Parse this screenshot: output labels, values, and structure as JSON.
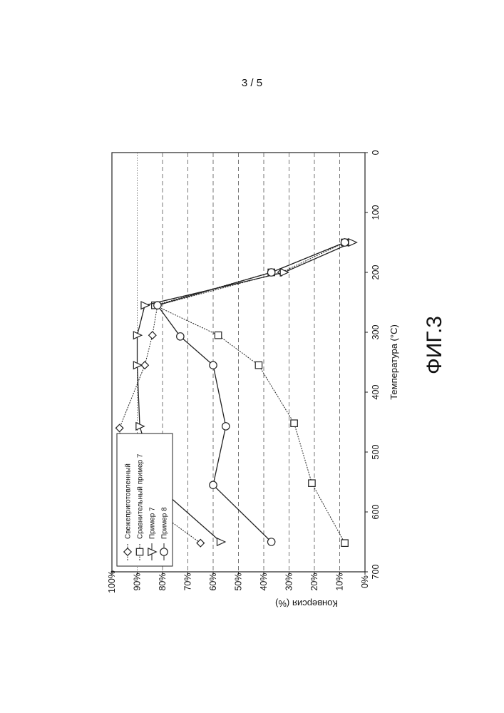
{
  "page_number": "3 / 5",
  "figure_label": "ФИГ.3",
  "chart_data": {
    "type": "line",
    "xlabel": "Температура (°C)",
    "ylabel": "Конверсия (%)",
    "xlim": [
      0,
      700
    ],
    "ylim": [
      0,
      100
    ],
    "x_ticks": [
      "0",
      "100",
      "200",
      "300",
      "400",
      "500",
      "600",
      "700"
    ],
    "y_ticks": [
      "0%",
      "10%",
      "20%",
      "30%",
      "40%",
      "50%",
      "60%",
      "70%",
      "80%",
      "90%",
      "100%"
    ],
    "grid": "horizontal dashed",
    "legend_position": "top-left",
    "series": [
      {
        "name": "Свежеприготовленный",
        "marker": "diamond",
        "line": "dotted",
        "x": [
          150,
          200,
          255,
          305,
          355,
          460,
          560,
          652
        ],
        "y": [
          8,
          33,
          82,
          84,
          87,
          97,
          95,
          65
        ]
      },
      {
        "name": "Сравнительный пример 7",
        "marker": "square",
        "line": "dotted",
        "x": [
          150,
          200,
          255,
          305,
          355,
          452,
          552,
          652
        ],
        "y": [
          8,
          37,
          83,
          58,
          42,
          28,
          21,
          8
        ]
      },
      {
        "name": "Пример 7",
        "marker": "triangle",
        "line": "solid",
        "x": [
          150,
          200,
          255,
          305,
          355,
          457,
          557,
          650
        ],
        "y": [
          5,
          32,
          87,
          90,
          90,
          89,
          82,
          57
        ]
      },
      {
        "name": "Пример 8",
        "marker": "circle",
        "line": "solid",
        "x": [
          150,
          200,
          255,
          307,
          355,
          457,
          555,
          650
        ],
        "y": [
          8,
          37,
          82,
          73,
          60,
          55,
          60,
          37
        ]
      }
    ]
  }
}
